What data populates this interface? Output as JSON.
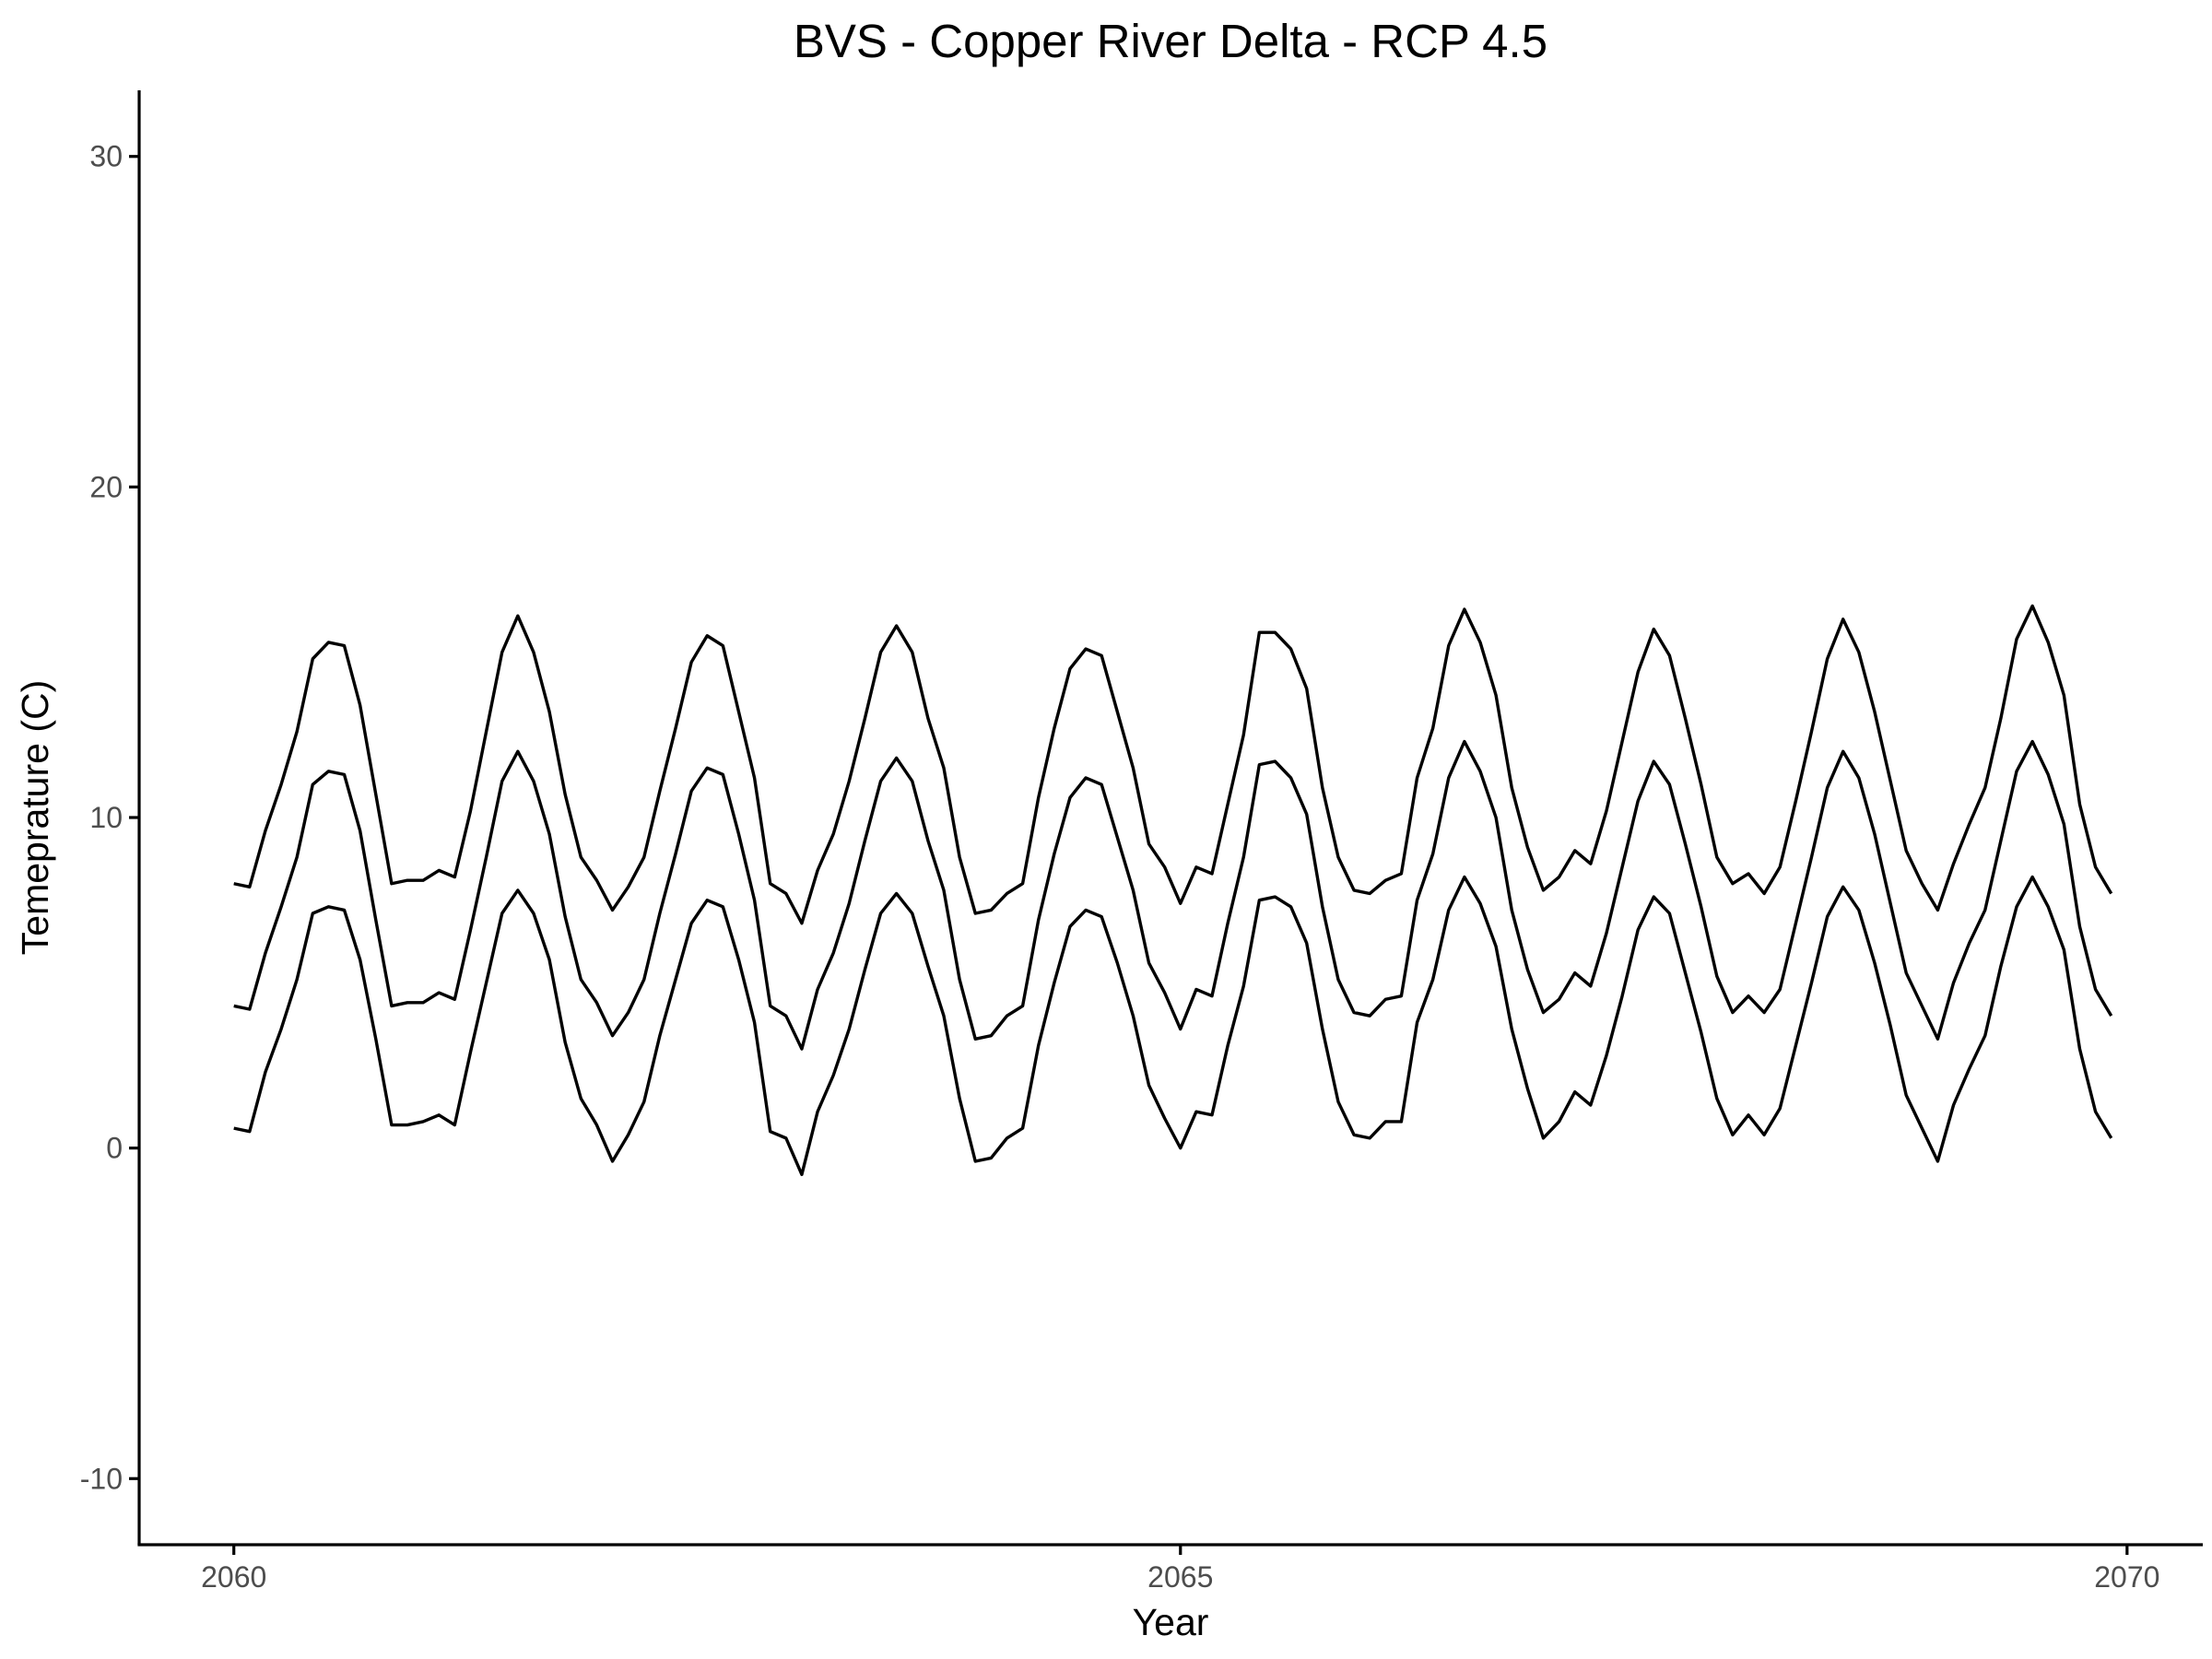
{
  "chart_data": {
    "type": "line",
    "title": "BVS - Copper River Delta - RCP 4.5",
    "xlabel": "Year",
    "ylabel": "Temeprature (C)",
    "xlim": [
      2059.5,
      2070.4
    ],
    "ylim": [
      -12,
      32
    ],
    "xticks": [
      2060,
      2065,
      2070
    ],
    "yticks": [
      -10,
      0,
      10,
      20,
      30
    ],
    "grid": false,
    "line_color": "#000000",
    "x_start": 2060.0,
    "x_step": 0.0833333,
    "series": [
      {
        "values": [
          8.0,
          7.9,
          9.6,
          11.0,
          12.6,
          14.8,
          15.3,
          15.2,
          13.4,
          10.7,
          8.0,
          8.1,
          8.1,
          8.4,
          8.2,
          10.2,
          12.6,
          15.0,
          16.1,
          15.0,
          13.2,
          10.7,
          8.8,
          8.1,
          7.2,
          7.9,
          8.8,
          10.8,
          12.7,
          14.7,
          15.5,
          15.2,
          13.2,
          11.2,
          8.0,
          7.7,
          6.8,
          8.4,
          9.5,
          11.1,
          13.0,
          15.0,
          15.8,
          15.0,
          13.0,
          11.5,
          8.8,
          7.1,
          7.2,
          7.7,
          8.0,
          10.6,
          12.7,
          14.5,
          15.1,
          14.9,
          13.2,
          11.5,
          9.2,
          8.5,
          7.4,
          8.5,
          8.3,
          10.4,
          12.5,
          15.6,
          15.6,
          15.1,
          13.9,
          10.9,
          8.8,
          7.8,
          7.7,
          8.1,
          8.3,
          11.2,
          12.7,
          15.2,
          16.3,
          15.3,
          13.7,
          10.9,
          9.1,
          7.8,
          8.2,
          9.0,
          8.6,
          10.2,
          12.3,
          14.4,
          15.7,
          14.9,
          13.0,
          11.0,
          8.8,
          8.0,
          8.3,
          7.7,
          8.5,
          10.5,
          12.6,
          14.8,
          16.0,
          15.0,
          13.2,
          11.1,
          9.0,
          8.0,
          7.2,
          8.6,
          9.8,
          10.9,
          13.0,
          15.4,
          16.4,
          15.3,
          13.7,
          10.4,
          8.5,
          7.7
        ]
      },
      {
        "values": [
          4.3,
          4.2,
          5.9,
          7.3,
          8.8,
          11.0,
          11.4,
          11.3,
          9.6,
          6.9,
          4.3,
          4.4,
          4.4,
          4.7,
          4.5,
          6.6,
          8.8,
          11.1,
          12.0,
          11.1,
          9.5,
          7.0,
          5.1,
          4.4,
          3.4,
          4.1,
          5.1,
          7.1,
          8.9,
          10.8,
          11.5,
          11.3,
          9.5,
          7.5,
          4.3,
          4.0,
          3.0,
          4.8,
          5.9,
          7.4,
          9.3,
          11.1,
          11.8,
          11.1,
          9.3,
          7.8,
          5.1,
          3.3,
          3.4,
          4.0,
          4.3,
          6.9,
          8.9,
          10.6,
          11.2,
          11.0,
          9.4,
          7.8,
          5.6,
          4.7,
          3.6,
          4.8,
          4.6,
          6.8,
          8.8,
          11.6,
          11.7,
          11.2,
          10.1,
          7.3,
          5.1,
          4.1,
          4.0,
          4.5,
          4.6,
          7.5,
          8.9,
          11.2,
          12.3,
          11.4,
          10.0,
          7.2,
          5.4,
          4.1,
          4.5,
          5.3,
          4.9,
          6.5,
          8.5,
          10.5,
          11.7,
          11.0,
          9.2,
          7.3,
          5.2,
          4.1,
          4.6,
          4.1,
          4.8,
          6.8,
          8.8,
          10.9,
          12.0,
          11.2,
          9.5,
          7.4,
          5.3,
          4.3,
          3.3,
          5.0,
          6.2,
          7.2,
          9.3,
          11.4,
          12.3,
          11.3,
          9.8,
          6.7,
          4.8,
          4.0
        ]
      },
      {
        "values": [
          0.6,
          0.5,
          2.3,
          3.6,
          5.1,
          7.1,
          7.3,
          7.2,
          5.7,
          3.3,
          0.7,
          0.7,
          0.8,
          1.0,
          0.7,
          2.9,
          5.0,
          7.1,
          7.8,
          7.1,
          5.7,
          3.2,
          1.5,
          0.7,
          -0.4,
          0.4,
          1.4,
          3.4,
          5.1,
          6.8,
          7.5,
          7.3,
          5.7,
          3.8,
          0.5,
          0.3,
          -0.8,
          1.1,
          2.2,
          3.6,
          5.4,
          7.1,
          7.7,
          7.1,
          5.5,
          4.0,
          1.5,
          -0.4,
          -0.3,
          0.3,
          0.6,
          3.1,
          5.0,
          6.7,
          7.2,
          7.0,
          5.6,
          4.0,
          1.9,
          0.9,
          0.0,
          1.1,
          1.0,
          3.1,
          4.9,
          7.5,
          7.6,
          7.3,
          6.2,
          3.6,
          1.4,
          0.4,
          0.3,
          0.8,
          0.8,
          3.8,
          5.1,
          7.2,
          8.2,
          7.4,
          6.1,
          3.6,
          1.8,
          0.3,
          0.8,
          1.7,
          1.3,
          2.8,
          4.6,
          6.6,
          7.6,
          7.1,
          5.3,
          3.5,
          1.5,
          0.4,
          1.0,
          0.4,
          1.2,
          3.1,
          5.0,
          7.0,
          7.9,
          7.2,
          5.6,
          3.7,
          1.6,
          0.6,
          -0.4,
          1.3,
          2.4,
          3.4,
          5.5,
          7.3,
          8.2,
          7.3,
          6.0,
          3.0,
          1.1,
          0.3
        ]
      }
    ]
  }
}
